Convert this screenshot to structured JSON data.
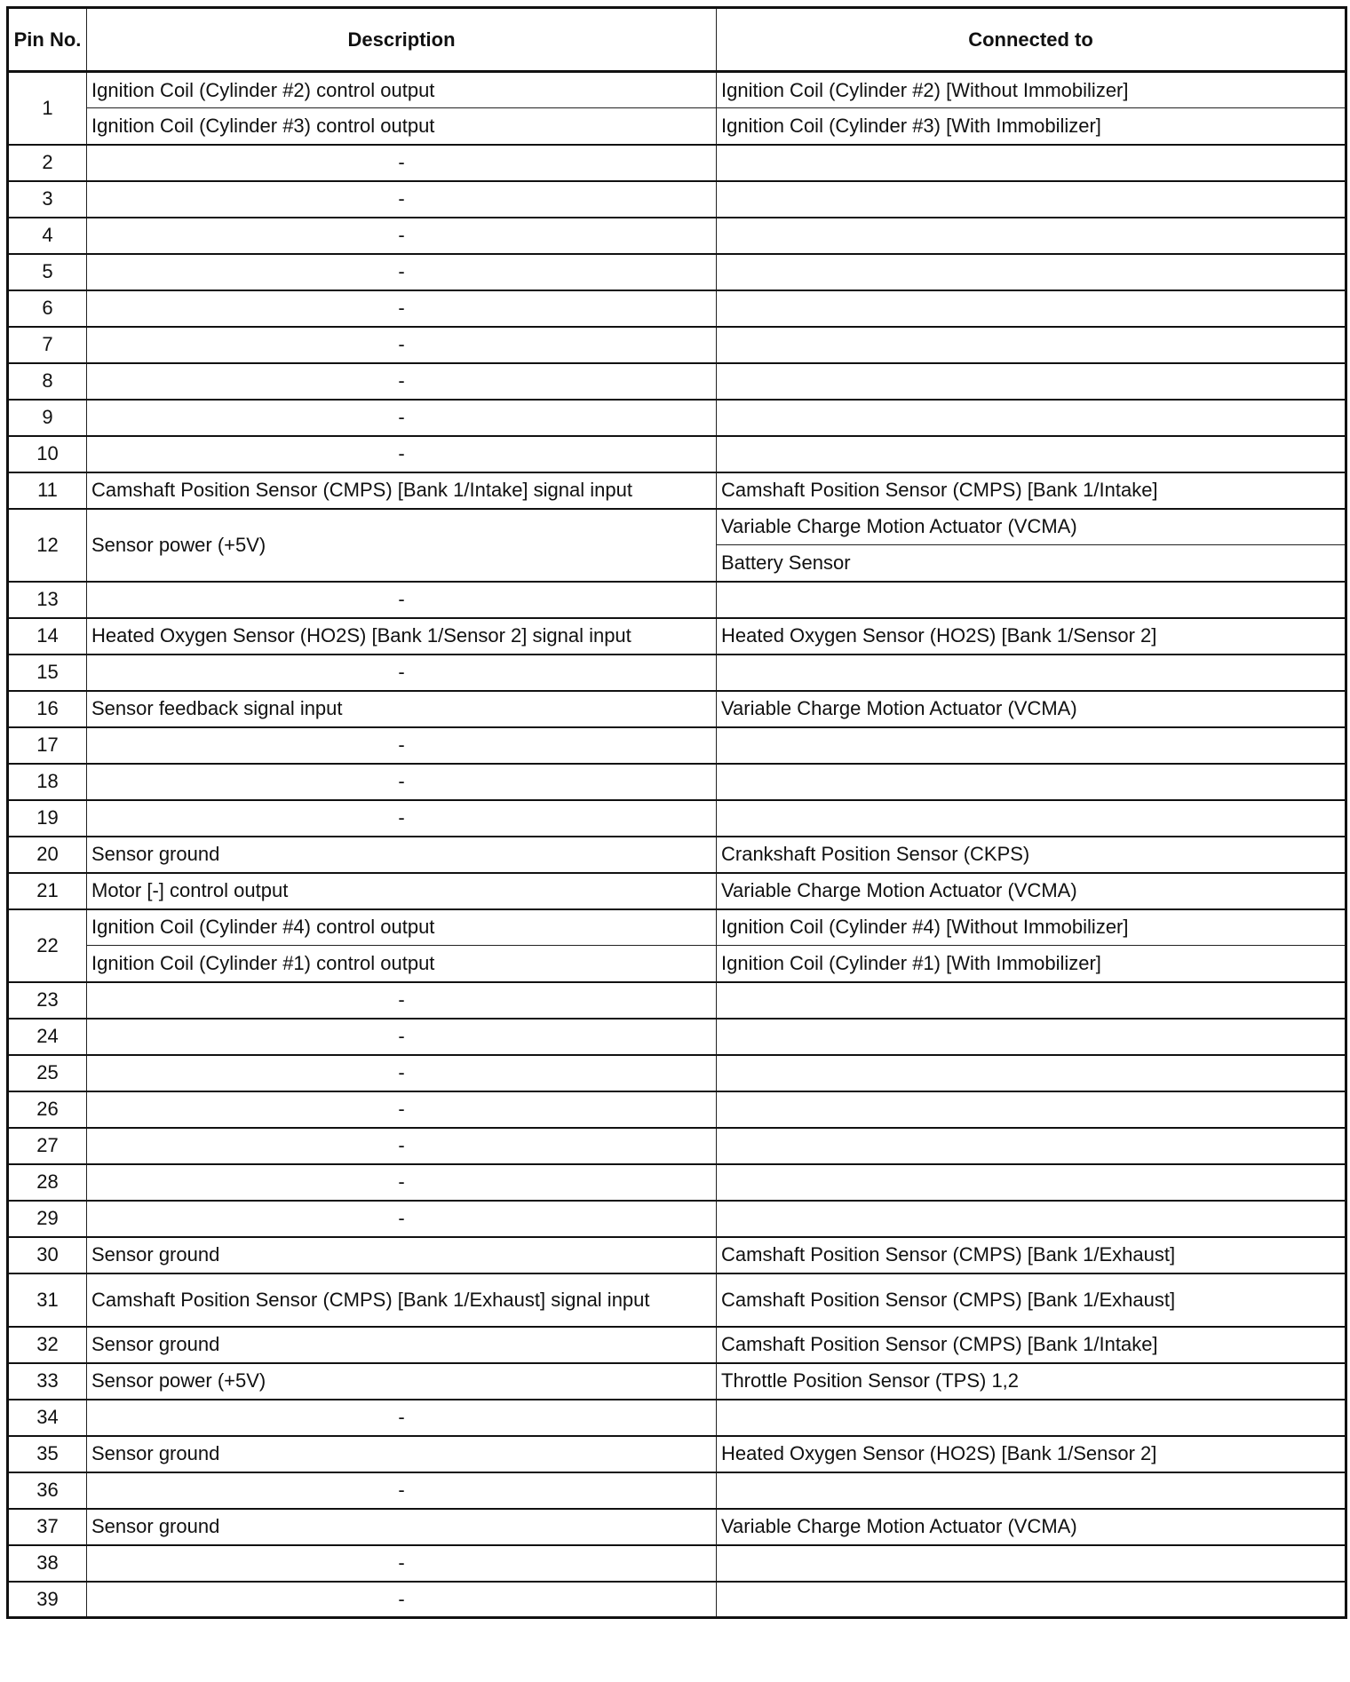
{
  "headers": {
    "pin": "Pin No.",
    "description": "Description",
    "connected": "Connected to"
  },
  "rows": [
    {
      "pin": "1",
      "desc": [
        "Ignition Coil (Cylinder #2) control output",
        "Ignition Coil (Cylinder #3) control output"
      ],
      "conn": [
        "Ignition Coil (Cylinder #2) [Without Immobilizer]",
        "Ignition Coil (Cylinder #3) [With Immobilizer]"
      ]
    },
    {
      "pin": "2",
      "desc": [
        "-"
      ],
      "conn": [
        ""
      ]
    },
    {
      "pin": "3",
      "desc": [
        "-"
      ],
      "conn": [
        ""
      ]
    },
    {
      "pin": "4",
      "desc": [
        "-"
      ],
      "conn": [
        ""
      ]
    },
    {
      "pin": "5",
      "desc": [
        "-"
      ],
      "conn": [
        ""
      ]
    },
    {
      "pin": "6",
      "desc": [
        "-"
      ],
      "conn": [
        ""
      ]
    },
    {
      "pin": "7",
      "desc": [
        "-"
      ],
      "conn": [
        ""
      ]
    },
    {
      "pin": "8",
      "desc": [
        "-"
      ],
      "conn": [
        ""
      ]
    },
    {
      "pin": "9",
      "desc": [
        "-"
      ],
      "conn": [
        ""
      ]
    },
    {
      "pin": "10",
      "desc": [
        "-"
      ],
      "conn": [
        ""
      ]
    },
    {
      "pin": "11",
      "desc": [
        "Camshaft Position Sensor (CMPS) [Bank 1/Intake] signal input"
      ],
      "conn": [
        "Camshaft Position Sensor (CMPS) [Bank 1/Intake]"
      ]
    },
    {
      "pin": "12",
      "desc": [
        "Sensor power (+5V)"
      ],
      "conn": [
        "Variable Charge Motion Actuator (VCMA)",
        "Battery Sensor"
      ]
    },
    {
      "pin": "13",
      "desc": [
        "-"
      ],
      "conn": [
        ""
      ]
    },
    {
      "pin": "14",
      "desc": [
        "Heated Oxygen Sensor (HO2S) [Bank 1/Sensor 2] signal input"
      ],
      "conn": [
        "Heated Oxygen Sensor (HO2S) [Bank 1/Sensor 2]"
      ]
    },
    {
      "pin": "15",
      "desc": [
        "-"
      ],
      "conn": [
        ""
      ]
    },
    {
      "pin": "16",
      "desc": [
        "Sensor feedback signal input"
      ],
      "conn": [
        "Variable Charge Motion Actuator (VCMA)"
      ]
    },
    {
      "pin": "17",
      "desc": [
        "-"
      ],
      "conn": [
        ""
      ]
    },
    {
      "pin": "18",
      "desc": [
        "-"
      ],
      "conn": [
        ""
      ]
    },
    {
      "pin": "19",
      "desc": [
        "-"
      ],
      "conn": [
        ""
      ]
    },
    {
      "pin": "20",
      "desc": [
        "Sensor ground"
      ],
      "conn": [
        "Crankshaft Position Sensor (CKPS)"
      ]
    },
    {
      "pin": "21",
      "desc": [
        "Motor [-] control output"
      ],
      "conn": [
        "Variable Charge Motion Actuator (VCMA)"
      ]
    },
    {
      "pin": "22",
      "desc": [
        "Ignition Coil (Cylinder #4) control output",
        "Ignition Coil (Cylinder #1) control output"
      ],
      "conn": [
        "Ignition Coil (Cylinder #4) [Without Immobilizer]",
        "Ignition Coil (Cylinder #1) [With Immobilizer]"
      ]
    },
    {
      "pin": "23",
      "desc": [
        "-"
      ],
      "conn": [
        ""
      ]
    },
    {
      "pin": "24",
      "desc": [
        "-"
      ],
      "conn": [
        ""
      ]
    },
    {
      "pin": "25",
      "desc": [
        "-"
      ],
      "conn": [
        ""
      ]
    },
    {
      "pin": "26",
      "desc": [
        "-"
      ],
      "conn": [
        ""
      ]
    },
    {
      "pin": "27",
      "desc": [
        "-"
      ],
      "conn": [
        ""
      ]
    },
    {
      "pin": "28",
      "desc": [
        "-"
      ],
      "conn": [
        ""
      ]
    },
    {
      "pin": "29",
      "desc": [
        "-"
      ],
      "conn": [
        ""
      ]
    },
    {
      "pin": "30",
      "desc": [
        "Sensor ground"
      ],
      "conn": [
        "Camshaft Position Sensor (CMPS) [Bank 1/Exhaust]"
      ]
    },
    {
      "pin": "31",
      "desc": [
        "Camshaft Position Sensor (CMPS) [Bank 1/Exhaust] signal input"
      ],
      "conn": [
        "Camshaft Position Sensor (CMPS) [Bank 1/Exhaust]"
      ],
      "wrap": true
    },
    {
      "pin": "32",
      "desc": [
        "Sensor ground"
      ],
      "conn": [
        "Camshaft Position Sensor (CMPS) [Bank 1/Intake]"
      ]
    },
    {
      "pin": "33",
      "desc": [
        "Sensor power (+5V)"
      ],
      "conn": [
        "Throttle Position Sensor (TPS) 1,2"
      ]
    },
    {
      "pin": "34",
      "desc": [
        "-"
      ],
      "conn": [
        ""
      ]
    },
    {
      "pin": "35",
      "desc": [
        "Sensor ground"
      ],
      "conn": [
        "Heated Oxygen Sensor (HO2S) [Bank 1/Sensor 2]"
      ]
    },
    {
      "pin": "36",
      "desc": [
        "-"
      ],
      "conn": [
        ""
      ]
    },
    {
      "pin": "37",
      "desc": [
        "Sensor ground"
      ],
      "conn": [
        "Variable Charge Motion Actuator (VCMA)"
      ]
    },
    {
      "pin": "38",
      "desc": [
        "-"
      ],
      "conn": [
        ""
      ]
    },
    {
      "pin": "39",
      "desc": [
        "-"
      ],
      "conn": [
        ""
      ]
    }
  ]
}
